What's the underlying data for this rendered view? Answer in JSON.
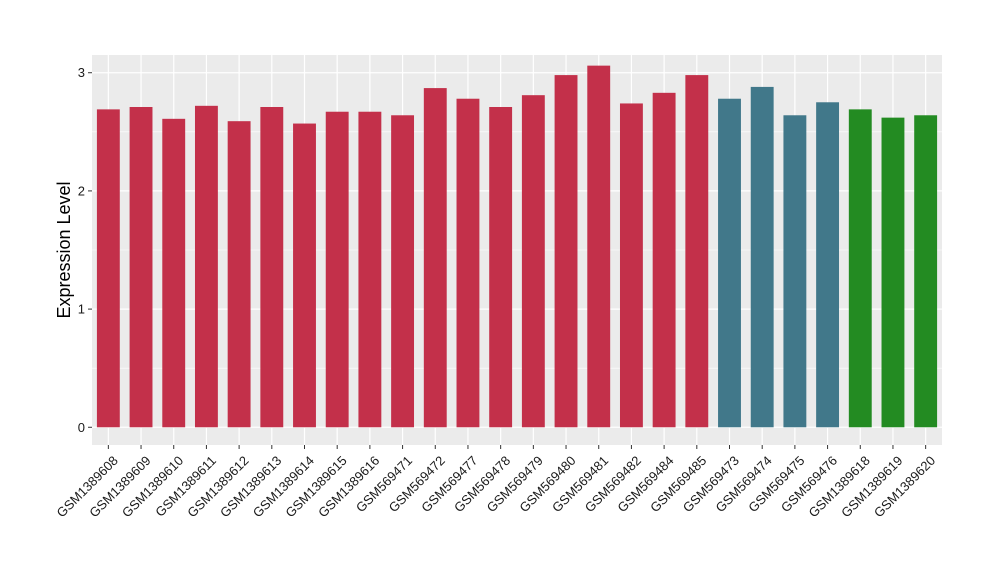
{
  "chart_data": {
    "type": "bar",
    "title": "",
    "xlabel": "",
    "ylabel": "Expression Level",
    "ylim": [
      -0.15,
      3.15
    ],
    "yticks": [
      0,
      1,
      2,
      3
    ],
    "grid": true,
    "legend": "none",
    "categories": [
      "GSM1389608",
      "GSM1389609",
      "GSM1389610",
      "GSM1389611",
      "GSM1389612",
      "GSM1389613",
      "GSM1389614",
      "GSM1389615",
      "GSM1389616",
      "GSM569471",
      "GSM569472",
      "GSM569477",
      "GSM569478",
      "GSM569479",
      "GSM569480",
      "GSM569481",
      "GSM569482",
      "GSM569484",
      "GSM569485",
      "GSM569473",
      "GSM569474",
      "GSM569475",
      "GSM569476",
      "GSM1389618",
      "GSM1389619",
      "GSM1389620"
    ],
    "values": [
      2.69,
      2.71,
      2.61,
      2.72,
      2.59,
      2.71,
      2.57,
      2.67,
      2.67,
      2.64,
      2.87,
      2.78,
      2.71,
      2.81,
      2.98,
      3.06,
      2.74,
      2.83,
      2.98,
      2.78,
      2.88,
      2.64,
      2.75,
      2.69,
      2.62,
      2.64
    ],
    "bar_colors": [
      "#c3304a",
      "#c3304a",
      "#c3304a",
      "#c3304a",
      "#c3304a",
      "#c3304a",
      "#c3304a",
      "#c3304a",
      "#c3304a",
      "#c3304a",
      "#c3304a",
      "#c3304a",
      "#c3304a",
      "#c3304a",
      "#c3304a",
      "#c3304a",
      "#c3304a",
      "#c3304a",
      "#c3304a",
      "#41788a",
      "#41788a",
      "#41788a",
      "#41788a",
      "#238b22",
      "#238b22",
      "#238b22"
    ],
    "panel_background": "#ebebeb",
    "gridline_color": "#ffffff"
  }
}
